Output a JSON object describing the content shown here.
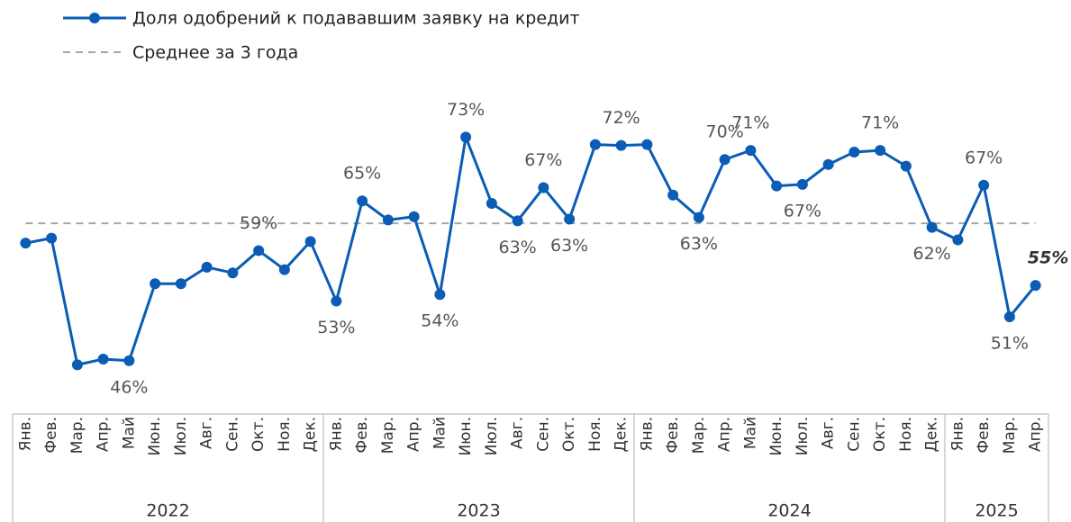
{
  "chart_data": {
    "type": "line",
    "categories": [
      "Янв.",
      "Фев.",
      "Мар.",
      "Апр.",
      "Май",
      "Июн.",
      "Июл.",
      "Авг.",
      "Сен.",
      "Окт.",
      "Ноя.",
      "Дек.",
      "Янв.",
      "Фев.",
      "Мар.",
      "Апр.",
      "Май",
      "Июн.",
      "Июл.",
      "Авг.",
      "Сен.",
      "Окт.",
      "Ноя.",
      "Дек.",
      "Янв.",
      "Фев.",
      "Мар.",
      "Апр.",
      "Май",
      "Июн.",
      "Июл.",
      "Авг.",
      "Сен.",
      "Окт.",
      "Ноя.",
      "Дек.",
      "Янв.",
      "Фев.",
      "Мар.",
      "Апр."
    ],
    "year_groups": [
      {
        "label": "2022",
        "count": 12
      },
      {
        "label": "2023",
        "count": 12
      },
      {
        "label": "2024",
        "count": 12
      },
      {
        "label": "2025",
        "count": 4
      }
    ],
    "series": [
      {
        "name": "Доля одобрений к подававшим заявку на кредит",
        "color": "#0a5cb5",
        "values": [
          60.2,
          60.8,
          45.5,
          46.2,
          46,
          55.3,
          55.3,
          57.3,
          56.6,
          59.3,
          57.0,
          60.4,
          53.2,
          65.3,
          63.0,
          63.4,
          54.0,
          73,
          65,
          62.9,
          66.9,
          63.1,
          72.1,
          72.0,
          72.1,
          66.0,
          63.3,
          70.3,
          71.4,
          67.1,
          67.3,
          69.7,
          71.2,
          71.4,
          69.5,
          62.1,
          60.6,
          67.2,
          51.3,
          55.1
        ],
        "value_labels": [
          null,
          null,
          null,
          null,
          "46%",
          null,
          null,
          null,
          null,
          "59%",
          null,
          null,
          "53%",
          "65%",
          null,
          null,
          "54%",
          "73%",
          null,
          "63%",
          "67%",
          "63%",
          null,
          "72%",
          null,
          null,
          "63%",
          "70%",
          "71%",
          null,
          "67%",
          null,
          null,
          "71%",
          null,
          "62%",
          null,
          "67%",
          "51%",
          "55%"
        ]
      }
    ],
    "average": {
      "name": "Среднее за 3 года",
      "value": 62.6,
      "color": "#a6a6a6"
    },
    "ylim": [
      40,
      80
    ]
  }
}
